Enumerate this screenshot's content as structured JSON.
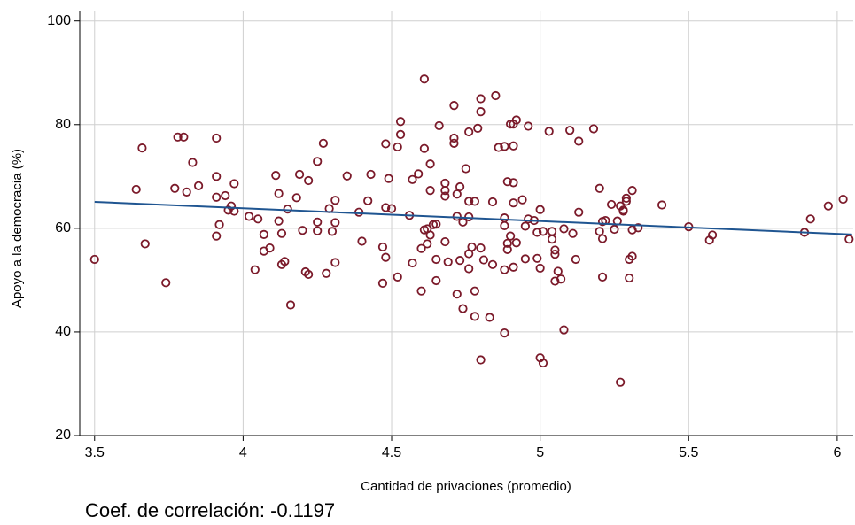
{
  "chart_data": {
    "type": "scatter",
    "xlabel": "Cantidad de privaciones (promedio)",
    "ylabel": "Apoyo a la democracia (%)",
    "annotation": "Coef. de correlación: -0.1197",
    "xlim": [
      3.45,
      6.054
    ],
    "xticks": [
      3.5,
      4,
      4.5,
      5,
      5.5,
      6
    ],
    "ylim": [
      20,
      102
    ],
    "yticks": [
      20,
      40,
      60,
      80,
      100
    ],
    "grid": true,
    "series": [
      {
        "type": "scatter",
        "color": "#7b1a2a",
        "x": [
          3.5,
          3.64,
          3.66,
          3.67,
          3.74,
          3.77,
          3.78,
          3.8,
          3.81,
          3.83,
          3.85,
          3.91,
          3.91,
          3.91,
          3.91,
          3.92,
          3.94,
          3.95,
          3.96,
          3.97,
          3.97,
          4.02,
          4.04,
          4.05,
          4.07,
          4.07,
          4.09,
          4.11,
          4.12,
          4.12,
          4.13,
          4.13,
          4.14,
          4.15,
          4.16,
          4.18,
          4.19,
          4.2,
          4.21,
          4.22,
          4.22,
          4.25,
          4.25,
          4.25,
          4.27,
          4.28,
          4.29,
          4.3,
          4.31,
          4.31,
          4.31,
          4.35,
          4.39,
          4.4,
          4.42,
          4.43,
          4.47,
          4.48,
          4.48,
          4.47,
          4.48,
          4.49,
          4.5,
          4.52,
          4.53,
          4.53,
          4.52,
          4.56,
          4.57,
          4.57,
          4.59,
          4.6,
          4.6,
          4.61,
          4.61,
          4.61,
          4.62,
          4.62,
          4.63,
          4.63,
          4.63,
          4.64,
          4.65,
          4.65,
          4.65,
          4.66,
          4.68,
          4.68,
          4.68,
          4.68,
          4.69,
          4.71,
          4.71,
          4.71,
          4.72,
          4.72,
          4.72,
          4.73,
          4.73,
          4.74,
          4.74,
          4.75,
          4.76,
          4.76,
          4.76,
          4.76,
          4.76,
          4.77,
          4.78,
          4.78,
          4.78,
          4.79,
          4.8,
          4.8,
          4.8,
          4.8,
          4.81,
          4.83,
          4.84,
          4.84,
          4.85,
          4.86,
          4.88,
          4.88,
          4.88,
          4.88,
          4.88,
          4.89,
          4.89,
          4.89,
          4.9,
          4.9,
          4.91,
          4.91,
          4.91,
          4.91,
          4.92,
          4.92,
          4.91,
          4.94,
          4.95,
          4.95,
          4.96,
          4.96,
          4.98,
          4.99,
          4.99,
          5.0,
          5.0,
          5.0,
          5.01,
          5.01,
          5.03,
          5.04,
          5.04,
          5.05,
          5.05,
          5.05,
          5.06,
          5.07,
          5.08,
          5.08,
          5.1,
          5.11,
          5.12,
          5.13,
          5.13,
          5.18,
          5.2,
          5.2,
          5.21,
          5.21,
          5.21,
          5.22,
          5.24,
          5.25,
          5.26,
          5.27,
          5.27,
          5.28,
          5.28,
          5.29,
          5.29,
          5.3,
          5.3,
          5.31,
          5.31,
          5.31,
          5.33,
          5.41,
          5.5,
          5.57,
          5.58,
          5.89,
          5.91,
          5.97,
          6.02,
          6.04
        ],
        "values": [
          54,
          67.5,
          75.5,
          57,
          49.5,
          67.7,
          77.6,
          77.6,
          67,
          72.7,
          68.2,
          77.4,
          70,
          66,
          58.5,
          60.7,
          66.3,
          63.5,
          64.3,
          68.6,
          63.3,
          62.3,
          52,
          61.8,
          58.8,
          55.6,
          56.2,
          70.2,
          66.7,
          61.4,
          59,
          53,
          53.6,
          63.7,
          45.2,
          65.9,
          70.4,
          59.6,
          51.6,
          51.1,
          69.2,
          72.9,
          61.2,
          59.5,
          76.4,
          51.3,
          63.8,
          59.4,
          65.4,
          61.1,
          53.4,
          70.1,
          63.1,
          57.5,
          65.3,
          70.4,
          56.4,
          76.3,
          54.4,
          49.4,
          64,
          69.6,
          63.8,
          75.7,
          80.6,
          78.1,
          50.6,
          62.5,
          69.4,
          53.3,
          70.5,
          56.1,
          47.9,
          88.8,
          75.4,
          59.7,
          59.9,
          57,
          72.4,
          67.3,
          58.7,
          60.7,
          60.8,
          54,
          49.9,
          79.8,
          68.7,
          67.3,
          66.2,
          57.4,
          53.5,
          83.7,
          77.4,
          76.4,
          66.6,
          62.3,
          47.3,
          53.8,
          68,
          61.2,
          44.5,
          71.5,
          78.6,
          65.2,
          62.2,
          55.1,
          52.2,
          56.4,
          65.2,
          43,
          47.9,
          79.3,
          82.5,
          85,
          56.2,
          34.6,
          53.9,
          42.8,
          65.1,
          53,
          85.6,
          75.6,
          75.8,
          62,
          60.5,
          52,
          39.8,
          69,
          57.1,
          55.9,
          58.5,
          80.1,
          80.1,
          75.9,
          68.8,
          64.9,
          80.9,
          57.2,
          52.5,
          65.5,
          54.1,
          60.4,
          79.7,
          61.8,
          61.5,
          54.2,
          59.2,
          63.6,
          52.3,
          35,
          34,
          59.4,
          78.7,
          57.9,
          59.4,
          55.8,
          55,
          49.8,
          51.7,
          50.2,
          40.4,
          59.9,
          78.9,
          59,
          54,
          76.8,
          63.1,
          79.2,
          59.4,
          67.7,
          61.3,
          58,
          50.6,
          61.5,
          64.6,
          59.8,
          61.4,
          64.3,
          30.3,
          63.3,
          63.5,
          65.2,
          65.8,
          54,
          50.4,
          54.6,
          67.3,
          59.7,
          60.1,
          64.5,
          60.3,
          57.7,
          58.7,
          59.2,
          61.8,
          64.3,
          65.6,
          57.9
        ]
      },
      {
        "type": "line",
        "color": "#1f5591",
        "x": [
          3.5,
          6.05
        ],
        "values": [
          65.1,
          58.8
        ]
      }
    ]
  }
}
